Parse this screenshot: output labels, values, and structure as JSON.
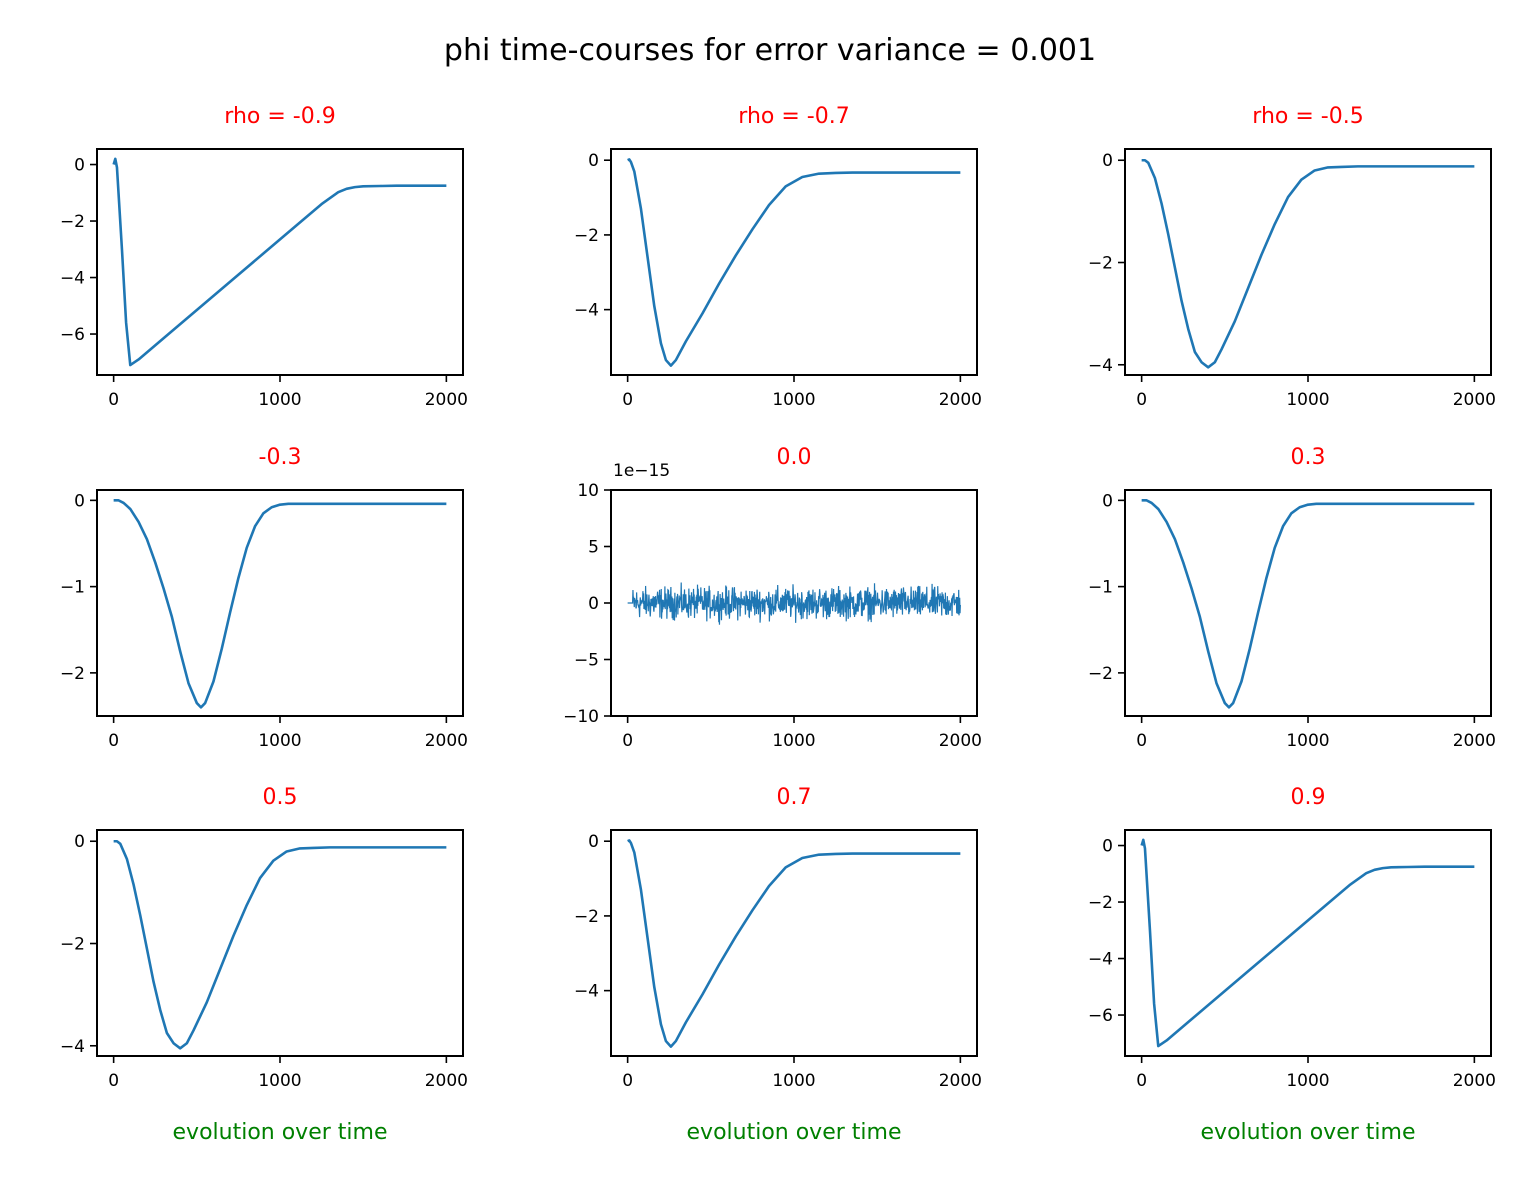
{
  "figure": {
    "suptitle": "phi time-courses for error variance = 0.001",
    "xlabel": "evolution over time",
    "title_color": "#ff0000",
    "xlabel_color": "#008000",
    "line_color": "#1f77b4"
  },
  "chart_data": [
    {
      "type": "line",
      "title": "rho = -0.9",
      "xlim": [
        -100,
        2100
      ],
      "xticks": [
        0,
        1000,
        2000
      ],
      "ylim": [
        -7.45,
        0.55
      ],
      "yticks": [
        0,
        -2,
        -4,
        -6
      ],
      "ytick_labels": [
        "0",
        "−2",
        "−4",
        "−6"
      ],
      "series": [
        {
          "x": [
            0,
            5,
            10,
            20,
            50,
            75,
            100,
            150,
            300,
            500,
            700,
            900,
            1100,
            1250,
            1350,
            1400,
            1450,
            1500,
            1600,
            1700,
            1800,
            2000
          ],
          "y": [
            0,
            0.1,
            0.2,
            -0.1,
            -3.0,
            -5.6,
            -7.1,
            -6.9,
            -6.15,
            -5.15,
            -4.15,
            -3.15,
            -2.15,
            -1.4,
            -0.98,
            -0.86,
            -0.8,
            -0.77,
            -0.76,
            -0.75,
            -0.75,
            -0.75
          ]
        }
      ]
    },
    {
      "type": "line",
      "title": "rho = -0.7",
      "xlim": [
        -100,
        2100
      ],
      "xticks": [
        0,
        1000,
        2000
      ],
      "ylim": [
        -5.75,
        0.3
      ],
      "yticks": [
        0,
        -2,
        -4
      ],
      "ytick_labels": [
        "0",
        "−2",
        "−4"
      ],
      "series": [
        {
          "x": [
            0,
            10,
            20,
            40,
            80,
            120,
            160,
            200,
            230,
            260,
            290,
            350,
            450,
            550,
            650,
            750,
            850,
            950,
            1050,
            1150,
            1250,
            1350,
            1500,
            1700,
            2000
          ],
          "y": [
            0,
            0.02,
            -0.05,
            -0.3,
            -1.3,
            -2.6,
            -3.9,
            -4.9,
            -5.35,
            -5.5,
            -5.35,
            -4.85,
            -4.1,
            -3.3,
            -2.55,
            -1.85,
            -1.2,
            -0.7,
            -0.45,
            -0.36,
            -0.34,
            -0.33,
            -0.33,
            -0.33,
            -0.33
          ]
        }
      ]
    },
    {
      "type": "line",
      "title": "rho = -0.5",
      "xlim": [
        -100,
        2100
      ],
      "xticks": [
        0,
        1000,
        2000
      ],
      "ylim": [
        -4.2,
        0.22
      ],
      "yticks": [
        0,
        -2,
        -4
      ],
      "ytick_labels": [
        "0",
        "−2",
        "−4"
      ],
      "series": [
        {
          "x": [
            0,
            20,
            40,
            80,
            120,
            160,
            200,
            240,
            280,
            320,
            360,
            400,
            440,
            480,
            560,
            640,
            720,
            800,
            880,
            960,
            1040,
            1120,
            1200,
            1300,
            1500,
            2000
          ],
          "y": [
            0,
            0,
            -0.05,
            -0.35,
            -0.85,
            -1.45,
            -2.1,
            -2.75,
            -3.3,
            -3.75,
            -3.95,
            -4.05,
            -3.95,
            -3.7,
            -3.15,
            -2.5,
            -1.85,
            -1.25,
            -0.72,
            -0.38,
            -0.2,
            -0.14,
            -0.13,
            -0.12,
            -0.12,
            -0.12
          ]
        }
      ]
    },
    {
      "type": "line",
      "title": "-0.3",
      "xlim": [
        -100,
        2100
      ],
      "xticks": [
        0,
        1000,
        2000
      ],
      "ylim": [
        -2.5,
        0.12
      ],
      "yticks": [
        0,
        -1,
        -2
      ],
      "ytick_labels": [
        "0",
        "−1",
        "−2"
      ],
      "series": [
        {
          "x": [
            0,
            30,
            60,
            100,
            150,
            200,
            250,
            300,
            350,
            400,
            450,
            500,
            525,
            550,
            600,
            650,
            700,
            750,
            800,
            850,
            900,
            950,
            1000,
            1050,
            1100,
            1200,
            1400,
            2000
          ],
          "y": [
            0,
            0,
            -0.03,
            -0.1,
            -0.25,
            -0.45,
            -0.72,
            -1.02,
            -1.35,
            -1.75,
            -2.12,
            -2.35,
            -2.4,
            -2.35,
            -2.1,
            -1.72,
            -1.3,
            -0.9,
            -0.55,
            -0.3,
            -0.15,
            -0.08,
            -0.05,
            -0.04,
            -0.04,
            -0.04,
            -0.04,
            -0.04
          ]
        }
      ]
    },
    {
      "type": "line",
      "title": "0.0",
      "offset_text": "1e−15",
      "xlim": [
        -100,
        2100
      ],
      "xticks": [
        0,
        1000,
        2000
      ],
      "ylim": [
        -10,
        10
      ],
      "yticks": [
        10,
        5,
        0,
        -5,
        -10
      ],
      "ytick_labels": [
        "10",
        "5",
        "0",
        "−5",
        "−10"
      ],
      "noise": {
        "start": 30,
        "end": 2000,
        "low": -2.2,
        "high": 2.6
      }
    },
    {
      "type": "line",
      "title": "0.3",
      "xlim": [
        -100,
        2100
      ],
      "xticks": [
        0,
        1000,
        2000
      ],
      "ylim": [
        -2.5,
        0.12
      ],
      "yticks": [
        0,
        -1,
        -2
      ],
      "ytick_labels": [
        "0",
        "−1",
        "−2"
      ],
      "series": [
        {
          "x": [
            0,
            30,
            60,
            100,
            150,
            200,
            250,
            300,
            350,
            400,
            450,
            500,
            525,
            550,
            600,
            650,
            700,
            750,
            800,
            850,
            900,
            950,
            1000,
            1050,
            1100,
            1200,
            1400,
            2000
          ],
          "y": [
            0,
            0,
            -0.03,
            -0.1,
            -0.25,
            -0.45,
            -0.72,
            -1.02,
            -1.35,
            -1.75,
            -2.12,
            -2.35,
            -2.4,
            -2.35,
            -2.1,
            -1.72,
            -1.3,
            -0.9,
            -0.55,
            -0.3,
            -0.15,
            -0.08,
            -0.05,
            -0.04,
            -0.04,
            -0.04,
            -0.04,
            -0.04
          ]
        }
      ]
    },
    {
      "type": "line",
      "title": "0.5",
      "xlim": [
        -100,
        2100
      ],
      "xticks": [
        0,
        1000,
        2000
      ],
      "ylim": [
        -4.2,
        0.22
      ],
      "yticks": [
        0,
        -2,
        -4
      ],
      "ytick_labels": [
        "0",
        "−2",
        "−4"
      ],
      "series": [
        {
          "x": [
            0,
            20,
            40,
            80,
            120,
            160,
            200,
            240,
            280,
            320,
            360,
            400,
            440,
            480,
            560,
            640,
            720,
            800,
            880,
            960,
            1040,
            1120,
            1200,
            1300,
            1500,
            2000
          ],
          "y": [
            0,
            0,
            -0.05,
            -0.35,
            -0.85,
            -1.45,
            -2.1,
            -2.75,
            -3.3,
            -3.75,
            -3.95,
            -4.05,
            -3.95,
            -3.7,
            -3.15,
            -2.5,
            -1.85,
            -1.25,
            -0.72,
            -0.38,
            -0.2,
            -0.14,
            -0.13,
            -0.12,
            -0.12,
            -0.12
          ]
        }
      ]
    },
    {
      "type": "line",
      "title": "0.7",
      "xlim": [
        -100,
        2100
      ],
      "xticks": [
        0,
        1000,
        2000
      ],
      "ylim": [
        -5.75,
        0.3
      ],
      "yticks": [
        0,
        -2,
        -4
      ],
      "ytick_labels": [
        "0",
        "−2",
        "−4"
      ],
      "series": [
        {
          "x": [
            0,
            10,
            20,
            40,
            80,
            120,
            160,
            200,
            230,
            260,
            290,
            350,
            450,
            550,
            650,
            750,
            850,
            950,
            1050,
            1150,
            1250,
            1350,
            1500,
            1700,
            2000
          ],
          "y": [
            0,
            0.02,
            -0.05,
            -0.3,
            -1.3,
            -2.6,
            -3.9,
            -4.9,
            -5.35,
            -5.5,
            -5.35,
            -4.85,
            -4.1,
            -3.3,
            -2.55,
            -1.85,
            -1.2,
            -0.7,
            -0.45,
            -0.36,
            -0.34,
            -0.33,
            -0.33,
            -0.33,
            -0.33
          ]
        }
      ]
    },
    {
      "type": "line",
      "title": "0.9",
      "xlim": [
        -100,
        2100
      ],
      "xticks": [
        0,
        1000,
        2000
      ],
      "ylim": [
        -7.45,
        0.55
      ],
      "yticks": [
        0,
        -2,
        -4,
        -6
      ],
      "ytick_labels": [
        "0",
        "−2",
        "−4",
        "−6"
      ],
      "series": [
        {
          "x": [
            0,
            5,
            10,
            20,
            50,
            75,
            100,
            150,
            300,
            500,
            700,
            900,
            1100,
            1250,
            1350,
            1400,
            1450,
            1500,
            1600,
            1700,
            1800,
            2000
          ],
          "y": [
            0,
            0.1,
            0.2,
            -0.1,
            -3.0,
            -5.6,
            -7.1,
            -6.9,
            -6.15,
            -5.15,
            -4.15,
            -3.15,
            -2.15,
            -1.4,
            -0.98,
            -0.86,
            -0.8,
            -0.77,
            -0.76,
            -0.75,
            -0.75,
            -0.75
          ]
        }
      ]
    }
  ]
}
